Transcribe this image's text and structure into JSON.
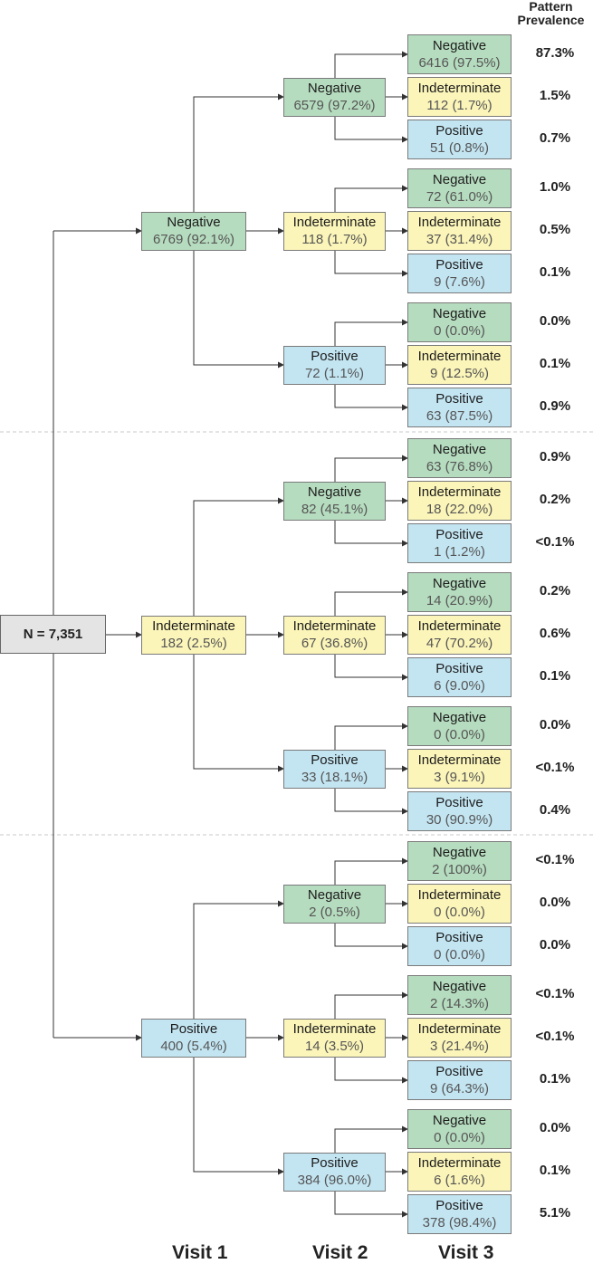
{
  "root": {
    "label": "N = 7,351"
  },
  "header": {
    "line1": "Pattern",
    "line2": "Prevalence"
  },
  "visits": [
    "Visit 1",
    "Visit 2",
    "Visit 3"
  ],
  "tree": [
    {
      "label": "Negative",
      "count": "6769 (92.1%)",
      "children": [
        {
          "label": "Negative",
          "count": "6579 (97.2%)",
          "children": [
            {
              "label": "Negative",
              "count": "6416 (97.5%)",
              "prevalence": "87.3%"
            },
            {
              "label": "Indeterminate",
              "count": "112 (1.7%)",
              "prevalence": "1.5%"
            },
            {
              "label": "Positive",
              "count": "51 (0.8%)",
              "prevalence": "0.7%"
            }
          ]
        },
        {
          "label": "Indeterminate",
          "count": "118 (1.7%)",
          "children": [
            {
              "label": "Negative",
              "count": "72 (61.0%)",
              "prevalence": "1.0%"
            },
            {
              "label": "Indeterminate",
              "count": "37 (31.4%)",
              "prevalence": "0.5%"
            },
            {
              "label": "Positive",
              "count": "9 (7.6%)",
              "prevalence": "0.1%"
            }
          ]
        },
        {
          "label": "Positive",
          "count": "72 (1.1%)",
          "children": [
            {
              "label": "Negative",
              "count": "0 (0.0%)",
              "prevalence": "0.0%"
            },
            {
              "label": "Indeterminate",
              "count": "9 (12.5%)",
              "prevalence": "0.1%"
            },
            {
              "label": "Positive",
              "count": "63 (87.5%)",
              "prevalence": "0.9%"
            }
          ]
        }
      ]
    },
    {
      "label": "Indeterminate",
      "count": "182 (2.5%)",
      "children": [
        {
          "label": "Negative",
          "count": "82 (45.1%)",
          "children": [
            {
              "label": "Negative",
              "count": "63 (76.8%)",
              "prevalence": "0.9%"
            },
            {
              "label": "Indeterminate",
              "count": "18 (22.0%)",
              "prevalence": "0.2%"
            },
            {
              "label": "Positive",
              "count": "1 (1.2%)",
              "prevalence": "<0.1%"
            }
          ]
        },
        {
          "label": "Indeterminate",
          "count": "67 (36.8%)",
          "children": [
            {
              "label": "Negative",
              "count": "14 (20.9%)",
              "prevalence": "0.2%"
            },
            {
              "label": "Indeterminate",
              "count": "47 (70.2%)",
              "prevalence": "0.6%"
            },
            {
              "label": "Positive",
              "count": "6 (9.0%)",
              "prevalence": "0.1%"
            }
          ]
        },
        {
          "label": "Positive",
          "count": "33 (18.1%)",
          "children": [
            {
              "label": "Negative",
              "count": "0 (0.0%)",
              "prevalence": "0.0%"
            },
            {
              "label": "Indeterminate",
              "count": "3 (9.1%)",
              "prevalence": "<0.1%"
            },
            {
              "label": "Positive",
              "count": "30 (90.9%)",
              "prevalence": "0.4%"
            }
          ]
        }
      ]
    },
    {
      "label": "Positive",
      "count": "400 (5.4%)",
      "children": [
        {
          "label": "Negative",
          "count": "2 (0.5%)",
          "children": [
            {
              "label": "Negative",
              "count": "2 (100%)",
              "prevalence": "<0.1%"
            },
            {
              "label": "Indeterminate",
              "count": "0 (0.0%)",
              "prevalence": "0.0%"
            },
            {
              "label": "Positive",
              "count": "0 (0.0%)",
              "prevalence": "0.0%"
            }
          ]
        },
        {
          "label": "Indeterminate",
          "count": "14 (3.5%)",
          "children": [
            {
              "label": "Negative",
              "count": "2 (14.3%)",
              "prevalence": "<0.1%"
            },
            {
              "label": "Indeterminate",
              "count": "3 (21.4%)",
              "prevalence": "<0.1%"
            },
            {
              "label": "Positive",
              "count": "9 (64.3%)",
              "prevalence": "0.1%"
            }
          ]
        },
        {
          "label": "Positive",
          "count": "384 (96.0%)",
          "children": [
            {
              "label": "Negative",
              "count": "0 (0.0%)",
              "prevalence": "0.0%"
            },
            {
              "label": "Indeterminate",
              "count": "6 (1.6%)",
              "prevalence": "0.1%"
            },
            {
              "label": "Positive",
              "count": "378 (98.4%)",
              "prevalence": "5.1%"
            }
          ]
        }
      ]
    }
  ],
  "colors": {
    "negative": "#b6dcbf",
    "indeterminate": "#fbf5b9",
    "positive": "#c3e5f2",
    "root": "#e4e4e4"
  }
}
